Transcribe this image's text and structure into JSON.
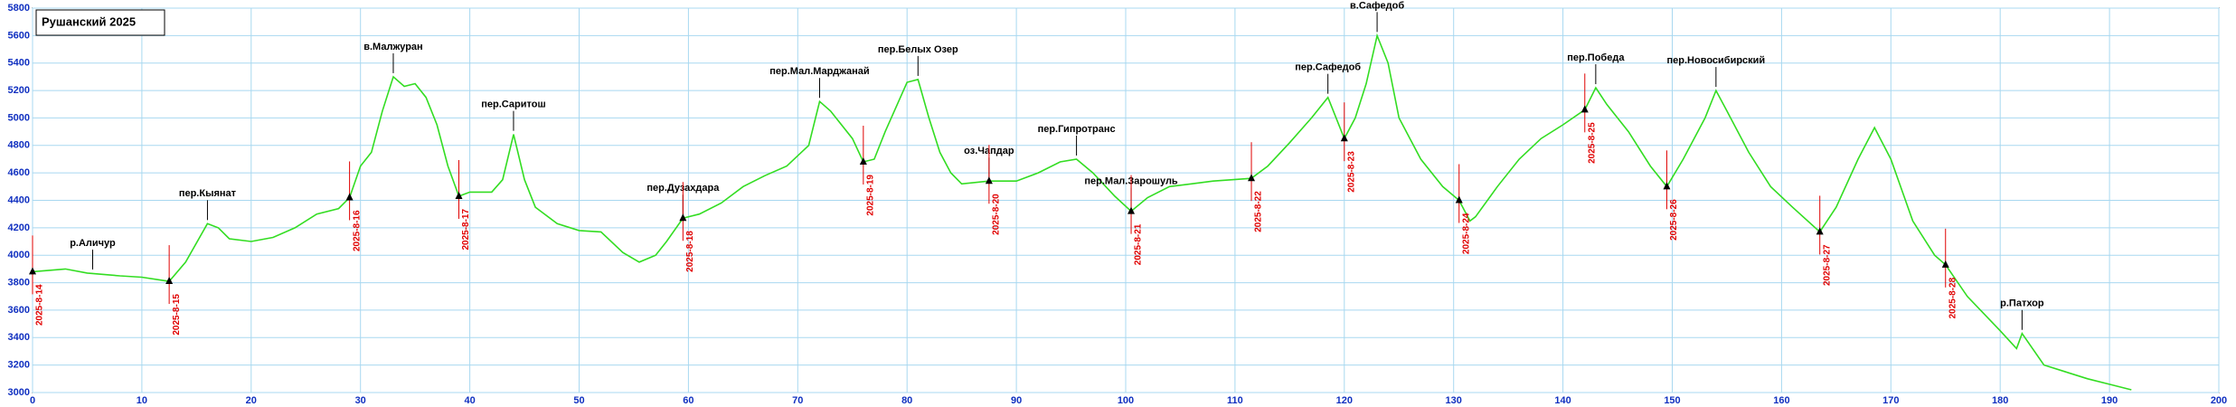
{
  "chart_data": {
    "type": "line",
    "title": "Рушанский 2025",
    "x": [
      0,
      3,
      5,
      8,
      10,
      12.5,
      14,
      16,
      17,
      18,
      20,
      22,
      24,
      26,
      28,
      29,
      30,
      31,
      32,
      33,
      34,
      35,
      36,
      37,
      38,
      39,
      40,
      42,
      43,
      44,
      45,
      46,
      48,
      50,
      52,
      54,
      55.5,
      57,
      58,
      59.5,
      61,
      63,
      65,
      67,
      69,
      71,
      72,
      73,
      75,
      76,
      77,
      78,
      80,
      81,
      82,
      83,
      84,
      85,
      87.5,
      90,
      92,
      94,
      95.5,
      97,
      99,
      100.5,
      102,
      104,
      106,
      108,
      111.5,
      113,
      115,
      117,
      118.5,
      120,
      121,
      122,
      123,
      124,
      125,
      127,
      129,
      130.5,
      131.5,
      132,
      134,
      136,
      138,
      140,
      142,
      143,
      144,
      146,
      148,
      149.5,
      151,
      153,
      154,
      155,
      157,
      159,
      161,
      163.5,
      165,
      167,
      168.5,
      170,
      172,
      174,
      175,
      177,
      180,
      181.5,
      182,
      184,
      186,
      188,
      190,
      192
    ],
    "values": [
      3880,
      3900,
      3870,
      3850,
      3840,
      3810,
      3950,
      4230,
      4200,
      4120,
      4100,
      4130,
      4200,
      4300,
      4340,
      4420,
      4650,
      4750,
      5050,
      5300,
      5230,
      5250,
      5150,
      4950,
      4650,
      4430,
      4460,
      4460,
      4550,
      4880,
      4550,
      4350,
      4230,
      4180,
      4170,
      4020,
      3950,
      4000,
      4100,
      4270,
      4300,
      4380,
      4500,
      4580,
      4650,
      4800,
      5120,
      5050,
      4850,
      4680,
      4700,
      4900,
      5260,
      5280,
      5000,
      4750,
      4600,
      4520,
      4540,
      4540,
      4600,
      4680,
      4700,
      4600,
      4430,
      4320,
      4420,
      4500,
      4520,
      4540,
      4560,
      4650,
      4820,
      5000,
      5150,
      4850,
      5000,
      5250,
      5600,
      5400,
      5000,
      4700,
      4500,
      4400,
      4250,
      4280,
      4500,
      4700,
      4850,
      4950,
      5060,
      5220,
      5100,
      4900,
      4650,
      4500,
      4700,
      5000,
      5200,
      5050,
      4750,
      4500,
      4350,
      4170,
      4350,
      4700,
      4930,
      4700,
      4250,
      4000,
      3930,
      3700,
      3450,
      3320,
      3430,
      3200,
      3150,
      3100,
      3060,
      3020
    ],
    "color": "#33dd22",
    "xlim": [
      0,
      200
    ],
    "xticks": [
      0,
      10,
      20,
      30,
      40,
      50,
      60,
      70,
      80,
      90,
      100,
      110,
      120,
      130,
      140,
      150,
      160,
      170,
      180,
      190,
      200
    ],
    "ylim": [
      3000,
      5800
    ],
    "yticks": [
      3000,
      3200,
      3400,
      3600,
      3800,
      4000,
      4200,
      4400,
      4600,
      4800,
      5000,
      5200,
      5400,
      5600,
      5800
    ],
    "grid": true,
    "annotations": [
      {
        "text": "р.Аличур",
        "x": 5.5,
        "y": 3870
      },
      {
        "text": "пер.Кыянат",
        "x": 16,
        "y": 4230
      },
      {
        "text": "в.Малжуран",
        "x": 33,
        "y": 5300
      },
      {
        "text": "пер.Саритош",
        "x": 44,
        "y": 4880
      },
      {
        "text": "пер.Дузахдара",
        "x": 59.5,
        "y": 4270
      },
      {
        "text": "пер.Мал.Марджанай",
        "x": 72,
        "y": 5120
      },
      {
        "text": "пер.Белых Озер",
        "x": 81,
        "y": 5280
      },
      {
        "text": "оз.Чапдар",
        "x": 87.5,
        "y": 4540
      },
      {
        "text": "пер.Гипротранс",
        "x": 95.5,
        "y": 4700
      },
      {
        "text": "пер.Мал.Зарошуль",
        "x": 100.5,
        "y": 4320
      },
      {
        "text": "пер.Сафедоб",
        "x": 118.5,
        "y": 5150
      },
      {
        "text": "в.Сафедоб",
        "x": 123,
        "y": 5600
      },
      {
        "text": "пер.Победа",
        "x": 143,
        "y": 5220
      },
      {
        "text": "пер.Новосибирский",
        "x": 154,
        "y": 5200
      },
      {
        "text": "р.Патхор",
        "x": 182,
        "y": 3430
      }
    ],
    "date_markers": [
      {
        "label": "2025-8-14",
        "x": 0,
        "y": 3880
      },
      {
        "label": "2025-8-15",
        "x": 12.5,
        "y": 3810
      },
      {
        "label": "2025-8-16",
        "x": 29,
        "y": 4420
      },
      {
        "label": "2025-8-17",
        "x": 39,
        "y": 4430
      },
      {
        "label": "2025-8-18",
        "x": 59.5,
        "y": 4270
      },
      {
        "label": "2025-8-19",
        "x": 76,
        "y": 4680
      },
      {
        "label": "2025-8-20",
        "x": 87.5,
        "y": 4540
      },
      {
        "label": "2025-8-21",
        "x": 100.5,
        "y": 4320
      },
      {
        "label": "2025-8-22",
        "x": 111.5,
        "y": 4560
      },
      {
        "label": "2025-8-23",
        "x": 120,
        "y": 4850
      },
      {
        "label": "2025-8-24",
        "x": 130.5,
        "y": 4400
      },
      {
        "label": "2025-8-25",
        "x": 142,
        "y": 5060
      },
      {
        "label": "2025-8-26",
        "x": 149.5,
        "y": 4500
      },
      {
        "label": "2025-8-27",
        "x": 163.5,
        "y": 4170
      },
      {
        "label": "2025-8-28",
        "x": 175,
        "y": 3930
      }
    ]
  }
}
